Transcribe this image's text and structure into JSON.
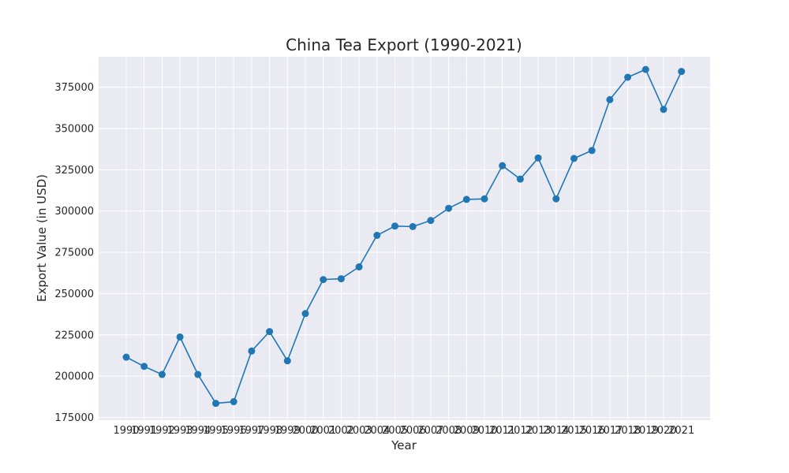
{
  "chart_data": {
    "type": "line",
    "title": "China Tea Export (1990-2021)",
    "xlabel": "Year",
    "ylabel": "Export Value (in USD)",
    "categories": [
      "1990",
      "1991",
      "1992",
      "1993",
      "1994",
      "1995",
      "1996",
      "1997",
      "1998",
      "1999",
      "2000",
      "2001",
      "2002",
      "2003",
      "2004",
      "2005",
      "2006",
      "2007",
      "2008",
      "2009",
      "2010",
      "2011",
      "2012",
      "2013",
      "2014",
      "2015",
      "2016",
      "2017",
      "2018",
      "2019",
      "2020",
      "2021"
    ],
    "series": [
      {
        "values": [
          211500,
          205900,
          201000,
          223700,
          201000,
          183500,
          184500,
          215200,
          227000,
          209300,
          237900,
          258500,
          259000,
          266200,
          285300,
          290900,
          290600,
          294300,
          301700,
          307100,
          307400,
          327500,
          319400,
          332200,
          307400,
          331900,
          336700,
          367500,
          381100,
          385800,
          361600,
          384600
        ],
        "color": "#1f77b4"
      }
    ],
    "ylim": [
      173300,
      393500
    ],
    "yticks": [
      175000,
      200000,
      225000,
      250000,
      275000,
      300000,
      325000,
      350000,
      375000
    ],
    "grid": true,
    "background": "#eaeaf2",
    "grid_color": "#ffffff"
  }
}
